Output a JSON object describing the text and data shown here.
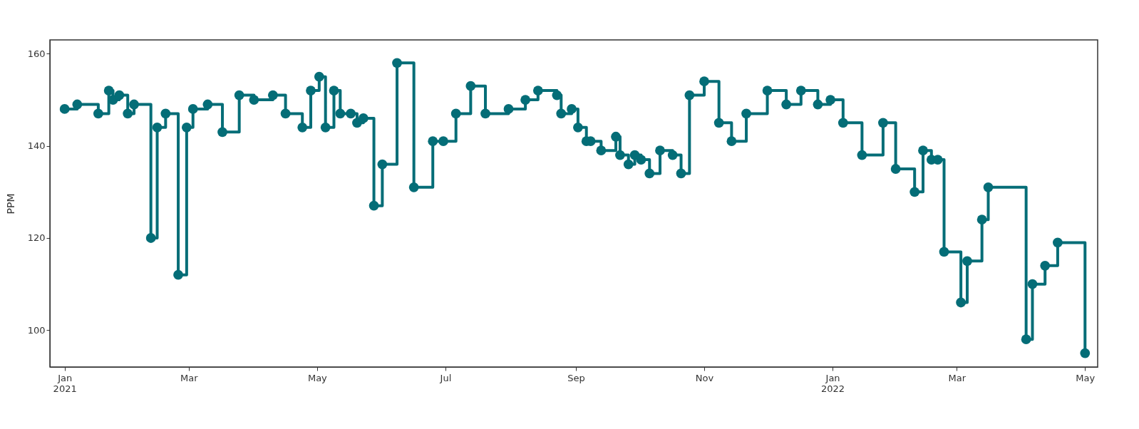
{
  "chart_data": {
    "type": "step",
    "ylabel": "PPM",
    "x": [
      "2021-01-01",
      "2021-01-07",
      "2021-01-17",
      "2021-01-22",
      "2021-01-24",
      "2021-01-27",
      "2021-01-31",
      "2021-02-03",
      "2021-02-11",
      "2021-02-14",
      "2021-02-18",
      "2021-02-24",
      "2021-02-28",
      "2021-03-03",
      "2021-03-10",
      "2021-03-17",
      "2021-03-25",
      "2021-04-01",
      "2021-04-10",
      "2021-04-16",
      "2021-04-24",
      "2021-04-28",
      "2021-05-02",
      "2021-05-05",
      "2021-05-09",
      "2021-05-12",
      "2021-05-17",
      "2021-05-20",
      "2021-05-23",
      "2021-05-28",
      "2021-06-01",
      "2021-06-08",
      "2021-06-16",
      "2021-06-25",
      "2021-06-30",
      "2021-07-06",
      "2021-07-13",
      "2021-07-20",
      "2021-07-31",
      "2021-08-08",
      "2021-08-14",
      "2021-08-23",
      "2021-08-25",
      "2021-08-30",
      "2021-09-02",
      "2021-09-06",
      "2021-09-08",
      "2021-09-13",
      "2021-09-20",
      "2021-09-22",
      "2021-09-26",
      "2021-09-29",
      "2021-10-02",
      "2021-10-06",
      "2021-10-11",
      "2021-10-17",
      "2021-10-21",
      "2021-10-25",
      "2021-11-01",
      "2021-11-08",
      "2021-11-14",
      "2021-11-21",
      "2021-12-01",
      "2021-12-10",
      "2021-12-17",
      "2021-12-25",
      "2021-12-31",
      "2022-01-06",
      "2022-01-15",
      "2022-01-25",
      "2022-01-31",
      "2022-02-09",
      "2022-02-13",
      "2022-02-17",
      "2022-02-20",
      "2022-02-23",
      "2022-03-03",
      "2022-03-06",
      "2022-03-13",
      "2022-03-16",
      "2022-04-03",
      "2022-04-06",
      "2022-04-12",
      "2022-04-18",
      "2022-05-01"
    ],
    "series": [
      {
        "color": "#046d77",
        "values": [
          148,
          149,
          147,
          152,
          150,
          151,
          147,
          149,
          120,
          144,
          147,
          112,
          144,
          148,
          149,
          143,
          151,
          150,
          151,
          147,
          144,
          152,
          155,
          144,
          152,
          147,
          147,
          145,
          146,
          127,
          136,
          158,
          131,
          141,
          141,
          147,
          153,
          147,
          148,
          150,
          152,
          151,
          147,
          148,
          144,
          141,
          141,
          139,
          142,
          138,
          136,
          138,
          137,
          134,
          139,
          138,
          134,
          151,
          154,
          145,
          141,
          147,
          152,
          149,
          152,
          149,
          150,
          145,
          138,
          145,
          135,
          130,
          139,
          137,
          137,
          117,
          106,
          115,
          124,
          131,
          98,
          110,
          114,
          119,
          95
        ]
      }
    ],
    "xlim": [
      "2020-12-25",
      "2022-05-07"
    ],
    "xticks": [
      {
        "value": "2021-01-01",
        "label": "Jan 2021"
      },
      {
        "value": "2021-03-01",
        "label": "Mar"
      },
      {
        "value": "2021-05-01",
        "label": "May"
      },
      {
        "value": "2021-07-01",
        "label": "Jul"
      },
      {
        "value": "2021-09-01",
        "label": "Sep"
      },
      {
        "value": "2021-11-01",
        "label": "Nov"
      },
      {
        "value": "2022-01-01",
        "label": "Jan 2022"
      },
      {
        "value": "2022-03-01",
        "label": "Mar"
      },
      {
        "value": "2022-05-01",
        "label": "May"
      }
    ],
    "ylim": [
      92,
      163
    ],
    "yticks": [
      100,
      120,
      140,
      160
    ],
    "grid": false,
    "marker": "circle"
  }
}
